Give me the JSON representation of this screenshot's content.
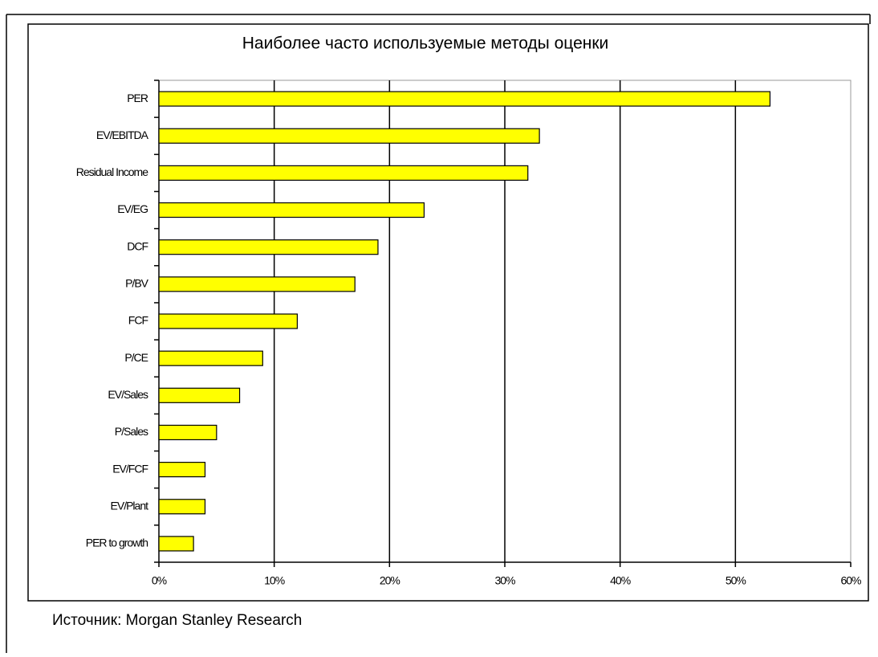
{
  "chart_data": {
    "type": "bar",
    "orientation": "horizontal",
    "title": "Наиболее часто используемые методы оценки",
    "source": "Источник: Morgan Stanley Research",
    "categories": [
      "PER",
      "EV/EBITDA",
      "Residual Income",
      "EV/EG",
      "DCF",
      "P/BV",
      "FCF",
      "P/CE",
      "EV/Sales",
      "P/Sales",
      "EV/FCF",
      "EV/Plant",
      "PER to growth"
    ],
    "values": [
      53,
      33,
      32,
      23,
      19,
      17,
      12,
      9,
      7,
      5,
      4,
      4,
      3
    ],
    "color": "#ffff00",
    "xlim": [
      0,
      60
    ],
    "xticks": [
      {
        "value": 0,
        "label": "0%"
      },
      {
        "value": 10,
        "label": "10%"
      },
      {
        "value": 20,
        "label": "20%"
      },
      {
        "value": 30,
        "label": "30%"
      },
      {
        "value": 40,
        "label": "40%"
      },
      {
        "value": 50,
        "label": "50%"
      },
      {
        "value": 60,
        "label": "60%"
      }
    ],
    "grid": true
  }
}
